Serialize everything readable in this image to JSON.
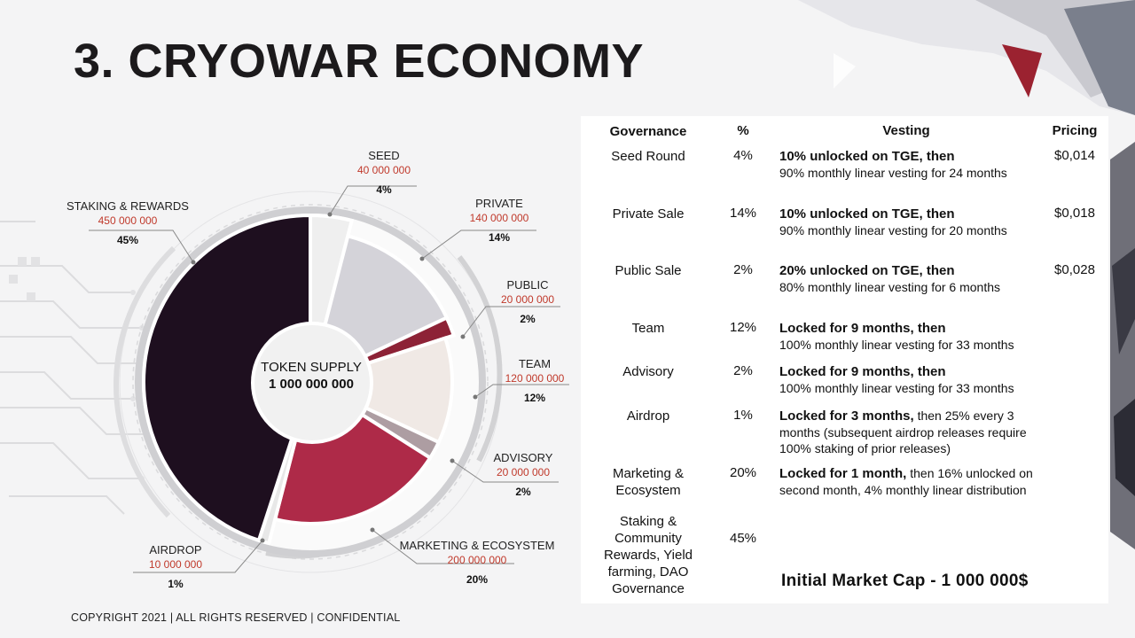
{
  "title": "3. CRYOWAR ECONOMY",
  "footer": "COPYRIGHT 2021 | ALL RIGHTS RESERVED | CONFIDENTIAL",
  "colors": {
    "seed": "#efefef",
    "private": "#d4d3d9",
    "public": "#8d2236",
    "team": "#f0e9e5",
    "advisory": "#ad9da2",
    "marketing": "#ae2a48",
    "airdrop": "#e8e8e8",
    "staking": "#1e0f1f"
  },
  "chart_data": {
    "type": "pie",
    "title": "TOKEN SUPPLY",
    "total": "1 000 000 000",
    "slices": [
      {
        "name": "SEED",
        "amount": "40 000 000",
        "percent_label": "4%",
        "value": 4
      },
      {
        "name": "PRIVATE",
        "amount": "140 000 000",
        "percent_label": "14%",
        "value": 14
      },
      {
        "name": "PUBLIC",
        "amount": "20 000 000",
        "percent_label": "2%",
        "value": 2
      },
      {
        "name": "TEAM",
        "amount": "120 000 000",
        "percent_label": "12%",
        "value": 12
      },
      {
        "name": "ADVISORY",
        "amount": "20 000 000",
        "percent_label": "2%",
        "value": 2
      },
      {
        "name": "MARKETING & ECOSYSTEM",
        "amount": "200 000 000",
        "percent_label": "20%",
        "value": 20
      },
      {
        "name": "AIRDROP",
        "amount": "10 000 000",
        "percent_label": "1%",
        "value": 1
      },
      {
        "name": "STAKING & REWARDS",
        "amount": "450 000 000",
        "percent_label": "45%",
        "value": 45
      }
    ]
  },
  "table": {
    "headers": {
      "gov": "Governance",
      "pct": "%",
      "vest": "Vesting",
      "price": "Pricing"
    },
    "rows": [
      {
        "gov": "Seed Round",
        "pct": "4%",
        "vest_bold": "10% unlocked on TGE, then",
        "vest_rest": "90% monthly linear vesting for 24 months",
        "price": "$0,014"
      },
      {
        "gov": "Private Sale",
        "pct": "14%",
        "vest_bold": "10% unlocked on TGE, then",
        "vest_rest": "90% monthly linear vesting for 20 months",
        "price": "$0,018"
      },
      {
        "gov": "Public Sale",
        "pct": "2%",
        "vest_bold": "20% unlocked on TGE, then",
        "vest_rest": "80% monthly linear vesting for 6 months",
        "price": "$0,028"
      },
      {
        "gov": "Team",
        "pct": "12%",
        "vest_bold": "Locked for 9 months, then",
        "vest_rest": "100% monthly linear vesting for 33 months",
        "price": ""
      },
      {
        "gov": "Advisory",
        "pct": "2%",
        "vest_bold": "Locked for 9 months, then",
        "vest_rest": "100% monthly linear vesting for 33 months",
        "price": ""
      },
      {
        "gov": "Airdrop",
        "pct": "1%",
        "vest_bold": "Locked for 3 months,",
        "vest_rest": " then 25% every 3 months (subsequent airdrop releases require 100% staking of prior releases)",
        "price": ""
      },
      {
        "gov": "Marketing & Ecosystem",
        "pct": "20%",
        "vest_bold": "Locked for 1 month,",
        "vest_rest": " then 16% unlocked on second month, 4% monthly linear distribution",
        "price": ""
      },
      {
        "gov": "Staking & Community Rewards, Yield farming, DAO Governance",
        "pct": "45%",
        "vest_bold": "",
        "vest_rest": "",
        "price": ""
      }
    ],
    "market_cap": "Initial Market Cap  - 1 000 000$"
  }
}
